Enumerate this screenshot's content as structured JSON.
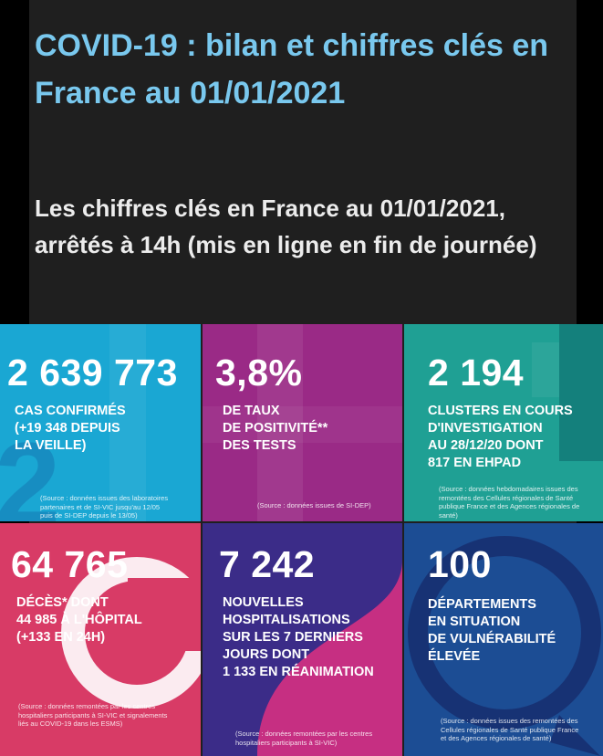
{
  "header": {
    "title": "COVID-19 : bilan et chiffres clés en France au 01/01/2021",
    "subtitle": "Les chiffres clés en France au 01/01/2021, arrêtés à 14h (mis en ligne en fin de journée)"
  },
  "tiles": [
    {
      "value": "2 639 773",
      "label": "CAS CONFIRMÉS\n(+19 348 DEPUIS\nLA VEILLE)",
      "source": "(Source : données issues des laboratoires\npartenaires et de SI-VIC jusqu'au 12/05\npuis de SI-DEP depuis le 13/05)",
      "color": "#1aa7d3"
    },
    {
      "value": "3,8%",
      "label": "DE TAUX\nDE POSITIVITÉ**\nDES TESTS",
      "source": "(Source : données issues de SI-DEP)",
      "color": "#9a2a86"
    },
    {
      "value": "2 194",
      "label": "CLUSTERS EN COURS\nD'INVESTIGATION\nAU 28/12/20 DONT\n817 EN EHPAD",
      "source": "(Source : données hebdomadaires issues des\nremontées des Cellules régionales de Santé\npublique France et des Agences régionales de\nsanté)",
      "color": "#1fa094"
    },
    {
      "value": "64 765",
      "label": "DÉCÈS* DONT\n44 985 À L'HÔPITAL\n(+133 EN 24H)",
      "source": "(Source : données remontées par les centres\nhospitaliers participants à SI-VIC et signalements\nliés au COVID-19 dans les ESMS)",
      "color": "#d83b66"
    },
    {
      "value": "7 242",
      "label": "NOUVELLES\nHOSPITALISATIONS\nSUR LES 7 DERNIERS\nJOURS DONT\n1 133 EN RÉANIMATION",
      "source": "(Source : données remontées par les centres\nhospitaliers participants à SI-VIC)",
      "color": "#3b2c88"
    },
    {
      "value": "100",
      "label": "DÉPARTEMENTS\nEN SITUATION\nDE VULNÉRABILITÉ\nÉLEVÉE",
      "source": "(Source : données issues des remontées des\nCellules régionales de Santé publique France\net des Agences régionales de santé)",
      "color": "#1c4d94"
    }
  ]
}
